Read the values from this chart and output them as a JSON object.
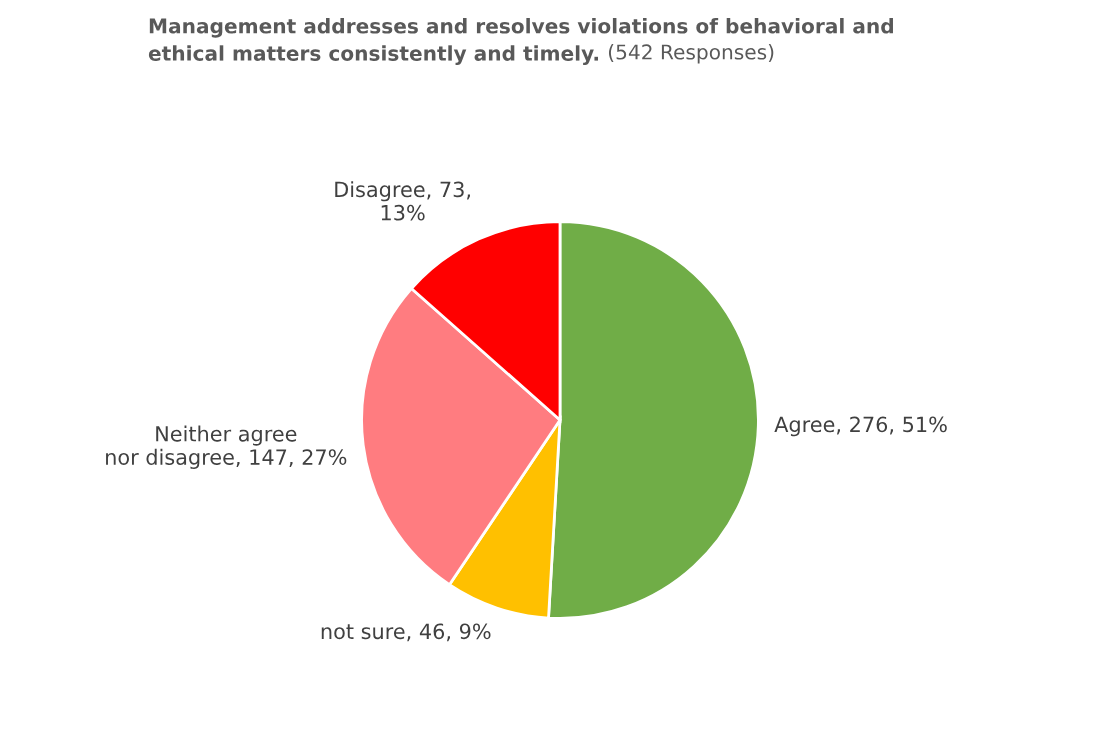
{
  "chart_data": {
    "type": "pie",
    "title": "Management addresses and resolves violations of behavioral and\nethical matters consistently and timely.",
    "subtitle": "(542 Responses)",
    "categories": [
      "Agree",
      "not sure",
      "Neither agree\nnor disagree",
      "Disagree"
    ],
    "values": [
      276,
      46,
      147,
      73
    ],
    "colors": [
      "#70ad47",
      "#ffc000",
      "#ff7c80",
      "#ff0000"
    ],
    "value_labels": [
      "276, 51%",
      "46, 9%",
      "147, 27%",
      "73,\n13%"
    ],
    "legend": false
  }
}
